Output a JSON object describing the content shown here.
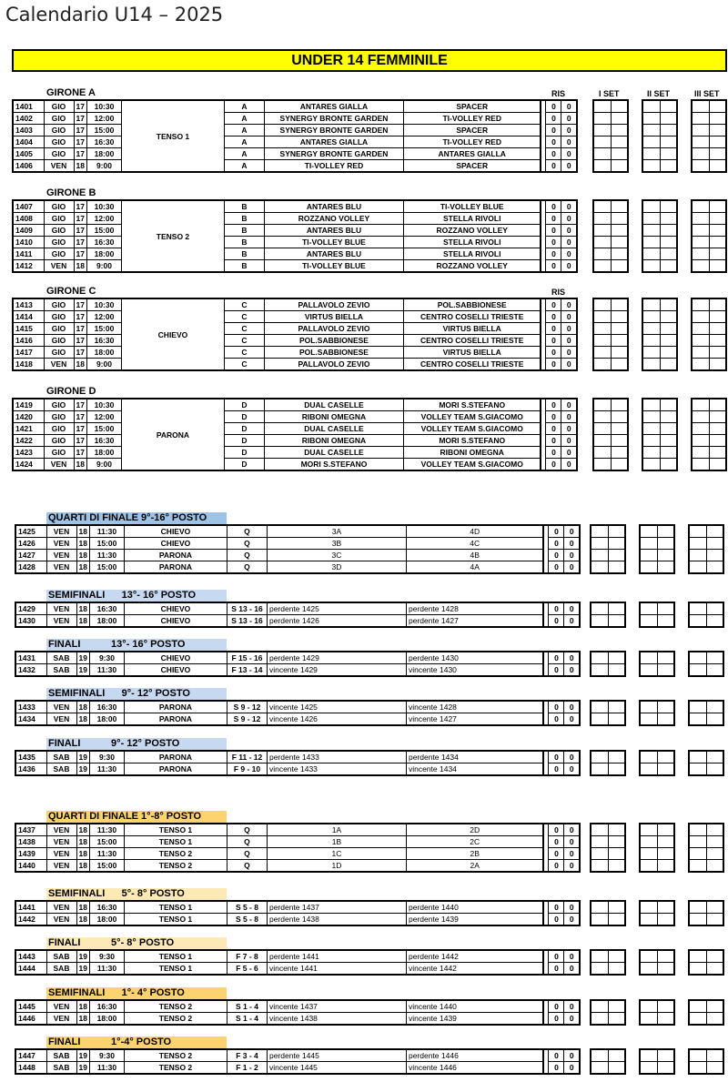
{
  "title": "Calendario U14 – 2025",
  "banner": "UNDER 14 FEMMINILE",
  "header_labels": {
    "ris": "RIS",
    "set1": "I SET",
    "set2": "II SET",
    "set3": "III SET"
  },
  "colors": {
    "banner": "#ffff00",
    "blue_section": "#c6d9f0",
    "blue_section_dark": "#9dc3e6",
    "orange_section": "#fde9b5",
    "orange_section_dark": "#fcd36e"
  },
  "sections": [
    {
      "label": "GIRONE A",
      "kind": "girone",
      "show_headers": true,
      "venue": "TENSO 1",
      "rows": [
        [
          "1401",
          "GIO",
          "17",
          "10:30",
          "A",
          "ANTARES GIALLA",
          "SPACER",
          "0",
          "0"
        ],
        [
          "1402",
          "GIO",
          "17",
          "12:00",
          "A",
          "SYNERGY BRONTE GARDEN",
          "TI-VOLLEY RED",
          "0",
          "0"
        ],
        [
          "1403",
          "GIO",
          "17",
          "15:00",
          "A",
          "SYNERGY BRONTE GARDEN",
          "SPACER",
          "0",
          "0"
        ],
        [
          "1404",
          "GIO",
          "17",
          "16:30",
          "A",
          "ANTARES GIALLA",
          "TI-VOLLEY RED",
          "0",
          "0"
        ],
        [
          "1405",
          "GIO",
          "17",
          "18:00",
          "A",
          "SYNERGY BRONTE GARDEN",
          "ANTARES GIALLA",
          "0",
          "0"
        ],
        [
          "1406",
          "VEN",
          "18",
          "9:00",
          "A",
          "TI-VOLLEY RED",
          "SPACER",
          "0",
          "0"
        ]
      ]
    },
    {
      "label": "GIRONE B",
      "kind": "girone",
      "venue": "TENSO 2",
      "rows": [
        [
          "1407",
          "GIO",
          "17",
          "10:30",
          "B",
          "ANTARES BLU",
          "TI-VOLLEY BLUE",
          "0",
          "0"
        ],
        [
          "1408",
          "GIO",
          "17",
          "12:00",
          "B",
          "ROZZANO VOLLEY",
          "STELLA RIVOLI",
          "0",
          "0"
        ],
        [
          "1409",
          "GIO",
          "17",
          "15:00",
          "B",
          "ANTARES BLU",
          "ROZZANO VOLLEY",
          "0",
          "0"
        ],
        [
          "1410",
          "GIO",
          "17",
          "16:30",
          "B",
          "TI-VOLLEY BLUE",
          "STELLA RIVOLI",
          "0",
          "0"
        ],
        [
          "1411",
          "GIO",
          "17",
          "18:00",
          "B",
          "ANTARES BLU",
          "STELLA RIVOLI",
          "0",
          "0"
        ],
        [
          "1412",
          "VEN",
          "18",
          "9:00",
          "B",
          "TI-VOLLEY BLUE",
          "ROZZANO VOLLEY",
          "0",
          "0"
        ]
      ]
    },
    {
      "label": "GIRONE C",
      "kind": "girone",
      "show_ris": true,
      "venue": "CHIEVO",
      "rows": [
        [
          "1413",
          "GIO",
          "17",
          "10:30",
          "C",
          "PALLAVOLO ZEVIO",
          "POL.SABBIONESE",
          "0",
          "0"
        ],
        [
          "1414",
          "GIO",
          "17",
          "12:00",
          "C",
          "VIRTUS BIELLA",
          "CENTRO COSELLI TRIESTE",
          "0",
          "0"
        ],
        [
          "1415",
          "GIO",
          "17",
          "15:00",
          "C",
          "PALLAVOLO ZEVIO",
          "VIRTUS BIELLA",
          "0",
          "0"
        ],
        [
          "1416",
          "GIO",
          "17",
          "16:30",
          "C",
          "POL.SABBIONESE",
          "CENTRO COSELLI TRIESTE",
          "0",
          "0"
        ],
        [
          "1417",
          "GIO",
          "17",
          "18:00",
          "C",
          "POL.SABBIONESE",
          "VIRTUS BIELLA",
          "0",
          "0"
        ],
        [
          "1418",
          "VEN",
          "18",
          "9:00",
          "C",
          "PALLAVOLO ZEVIO",
          "CENTRO COSELLI TRIESTE",
          "0",
          "0"
        ]
      ]
    },
    {
      "label": "GIRONE D",
      "kind": "girone",
      "venue": "PARONA",
      "rows": [
        [
          "1419",
          "GIO",
          "17",
          "10:30",
          "D",
          "DUAL CASELLE",
          "MORI S.STEFANO",
          "0",
          "0"
        ],
        [
          "1420",
          "GIO",
          "17",
          "12:00",
          "D",
          "RIBONI OMEGNA",
          "VOLLEY TEAM S.GIACOMO",
          "0",
          "0"
        ],
        [
          "1421",
          "GIO",
          "17",
          "15:00",
          "D",
          "DUAL CASELLE",
          "VOLLEY TEAM S.GIACOMO",
          "0",
          "0"
        ],
        [
          "1422",
          "GIO",
          "17",
          "16:30",
          "D",
          "RIBONI OMEGNA",
          "MORI S.STEFANO",
          "0",
          "0"
        ],
        [
          "1423",
          "GIO",
          "17",
          "18:00",
          "D",
          "DUAL CASELLE",
          "RIBONI OMEGNA",
          "0",
          "0"
        ],
        [
          "1424",
          "VEN",
          "18",
          "9:00",
          "D",
          "MORI S.STEFANO",
          "VOLLEY TEAM S.GIACOMO",
          "0",
          "0"
        ]
      ]
    },
    {
      "label": "QUARTI DI FINALE 9°-16° POSTO",
      "kind": "quarter",
      "color": "#9dc3e6",
      "rows": [
        [
          "1425",
          "VEN",
          "18",
          "11:30",
          "CHIEVO",
          "Q",
          "3A",
          "4D",
          "0",
          "0"
        ],
        [
          "1426",
          "VEN",
          "18",
          "15:00",
          "CHIEVO",
          "Q",
          "3B",
          "4C",
          "0",
          "0"
        ],
        [
          "1427",
          "VEN",
          "18",
          "11:30",
          "PARONA",
          "Q",
          "3C",
          "4B",
          "0",
          "0"
        ],
        [
          "1428",
          "VEN",
          "18",
          "15:00",
          "PARONA",
          "Q",
          "3D",
          "4A",
          "0",
          "0"
        ]
      ]
    },
    {
      "label": "SEMIFINALI      13°- 16° POSTO",
      "kind": "ko",
      "color": "#c6d9f0",
      "rows": [
        [
          "1429",
          "VEN",
          "18",
          "16:30",
          "CHIEVO",
          "S 13 - 16",
          "perdente 1425",
          "perdente 1428",
          "0",
          "0"
        ],
        [
          "1430",
          "VEN",
          "18",
          "18:00",
          "CHIEVO",
          "S 13 - 16",
          "perdente 1426",
          "perdente 1427",
          "0",
          "0"
        ]
      ]
    },
    {
      "label": "FINALI           13°- 16° POSTO",
      "kind": "ko",
      "color": "#c6d9f0",
      "rows": [
        [
          "1431",
          "SAB",
          "19",
          "9:30",
          "CHIEVO",
          "F 15 - 16",
          "perdente 1429",
          "perdente 1430",
          "0",
          "0"
        ],
        [
          "1432",
          "SAB",
          "19",
          "11:30",
          "CHIEVO",
          "F 13 - 14",
          "vincente 1429",
          "vincente 1430",
          "0",
          "0"
        ]
      ]
    },
    {
      "label": "SEMIFINALI      9°- 12° POSTO",
      "kind": "ko",
      "color": "#c6d9f0",
      "rows": [
        [
          "1433",
          "VEN",
          "18",
          "16:30",
          "PARONA",
          "S 9 - 12",
          "vincente 1425",
          "vincente 1428",
          "0",
          "0"
        ],
        [
          "1434",
          "VEN",
          "18",
          "18:00",
          "PARONA",
          "S 9 - 12",
          "vincente 1426",
          "vincente 1427",
          "0",
          "0"
        ]
      ]
    },
    {
      "label": "FINALI           9°- 12° POSTO",
      "kind": "ko",
      "color": "#c6d9f0",
      "rows": [
        [
          "1435",
          "SAB",
          "19",
          "9:30",
          "PARONA",
          "F 11 - 12",
          "perdente 1433",
          "perdente 1434",
          "0",
          "0"
        ],
        [
          "1436",
          "SAB",
          "19",
          "11:30",
          "PARONA",
          "F 9 - 10",
          "vincente 1433",
          "vincente 1434",
          "0",
          "0"
        ]
      ]
    },
    {
      "label": "QUARTI DI FINALE 1°-8° POSTO",
      "kind": "quarter",
      "color": "#fcd36e",
      "rows": [
        [
          "1437",
          "VEN",
          "18",
          "11:30",
          "TENSO 1",
          "Q",
          "1A",
          "2D",
          "0",
          "0"
        ],
        [
          "1438",
          "VEN",
          "18",
          "15:00",
          "TENSO 1",
          "Q",
          "1B",
          "2C",
          "0",
          "0"
        ],
        [
          "1439",
          "VEN",
          "18",
          "11:30",
          "TENSO 2",
          "Q",
          "1C",
          "2B",
          "0",
          "0"
        ],
        [
          "1440",
          "VEN",
          "18",
          "15:00",
          "TENSO 2",
          "Q",
          "1D",
          "2A",
          "0",
          "0"
        ]
      ]
    },
    {
      "label": "SEMIFINALI      5°- 8° POSTO",
      "kind": "ko",
      "color": "#fde9b5",
      "rows": [
        [
          "1441",
          "VEN",
          "18",
          "16:30",
          "TENSO 1",
          "S 5 - 8",
          "perdente 1437",
          "perdente 1440",
          "0",
          "0"
        ],
        [
          "1442",
          "VEN",
          "18",
          "18:00",
          "TENSO 1",
          "S 5 - 8",
          "perdente 1438",
          "perdente 1439",
          "0",
          "0"
        ]
      ]
    },
    {
      "label": "FINALI           5°- 8° POSTO",
      "kind": "ko",
      "color": "#fde9b5",
      "rows": [
        [
          "1443",
          "SAB",
          "19",
          "9:30",
          "TENSO 1",
          "F 7 - 8",
          "perdente 1441",
          "perdente 1442",
          "0",
          "0"
        ],
        [
          "1444",
          "SAB",
          "19",
          "11:30",
          "TENSO 1",
          "F 5 - 6",
          "vincente 1441",
          "vincente 1442",
          "0",
          "0"
        ]
      ]
    },
    {
      "label": "SEMIFINALI      1°- 4° POSTO",
      "kind": "ko",
      "color": "#fcd36e",
      "rows": [
        [
          "1445",
          "VEN",
          "18",
          "16:30",
          "TENSO 2",
          "S 1 - 4",
          "vincente 1437",
          "vincente 1440",
          "0",
          "0"
        ],
        [
          "1446",
          "VEN",
          "18",
          "18:00",
          "TENSO 2",
          "S 1 - 4",
          "vincente 1438",
          "vincente 1439",
          "0",
          "0"
        ]
      ]
    },
    {
      "label": "FINALI           1°-4° POSTO",
      "kind": "ko",
      "color": "#fcd36e",
      "rows": [
        [
          "1447",
          "SAB",
          "19",
          "9:30",
          "TENSO 2",
          "F 3 - 4",
          "perdente 1445",
          "perdente 1446",
          "0",
          "0"
        ],
        [
          "1448",
          "SAB",
          "19",
          "11:30",
          "TENSO 2",
          "F 1 - 2",
          "vincente 1445",
          "vincente 1446",
          "0",
          "0"
        ]
      ]
    }
  ]
}
